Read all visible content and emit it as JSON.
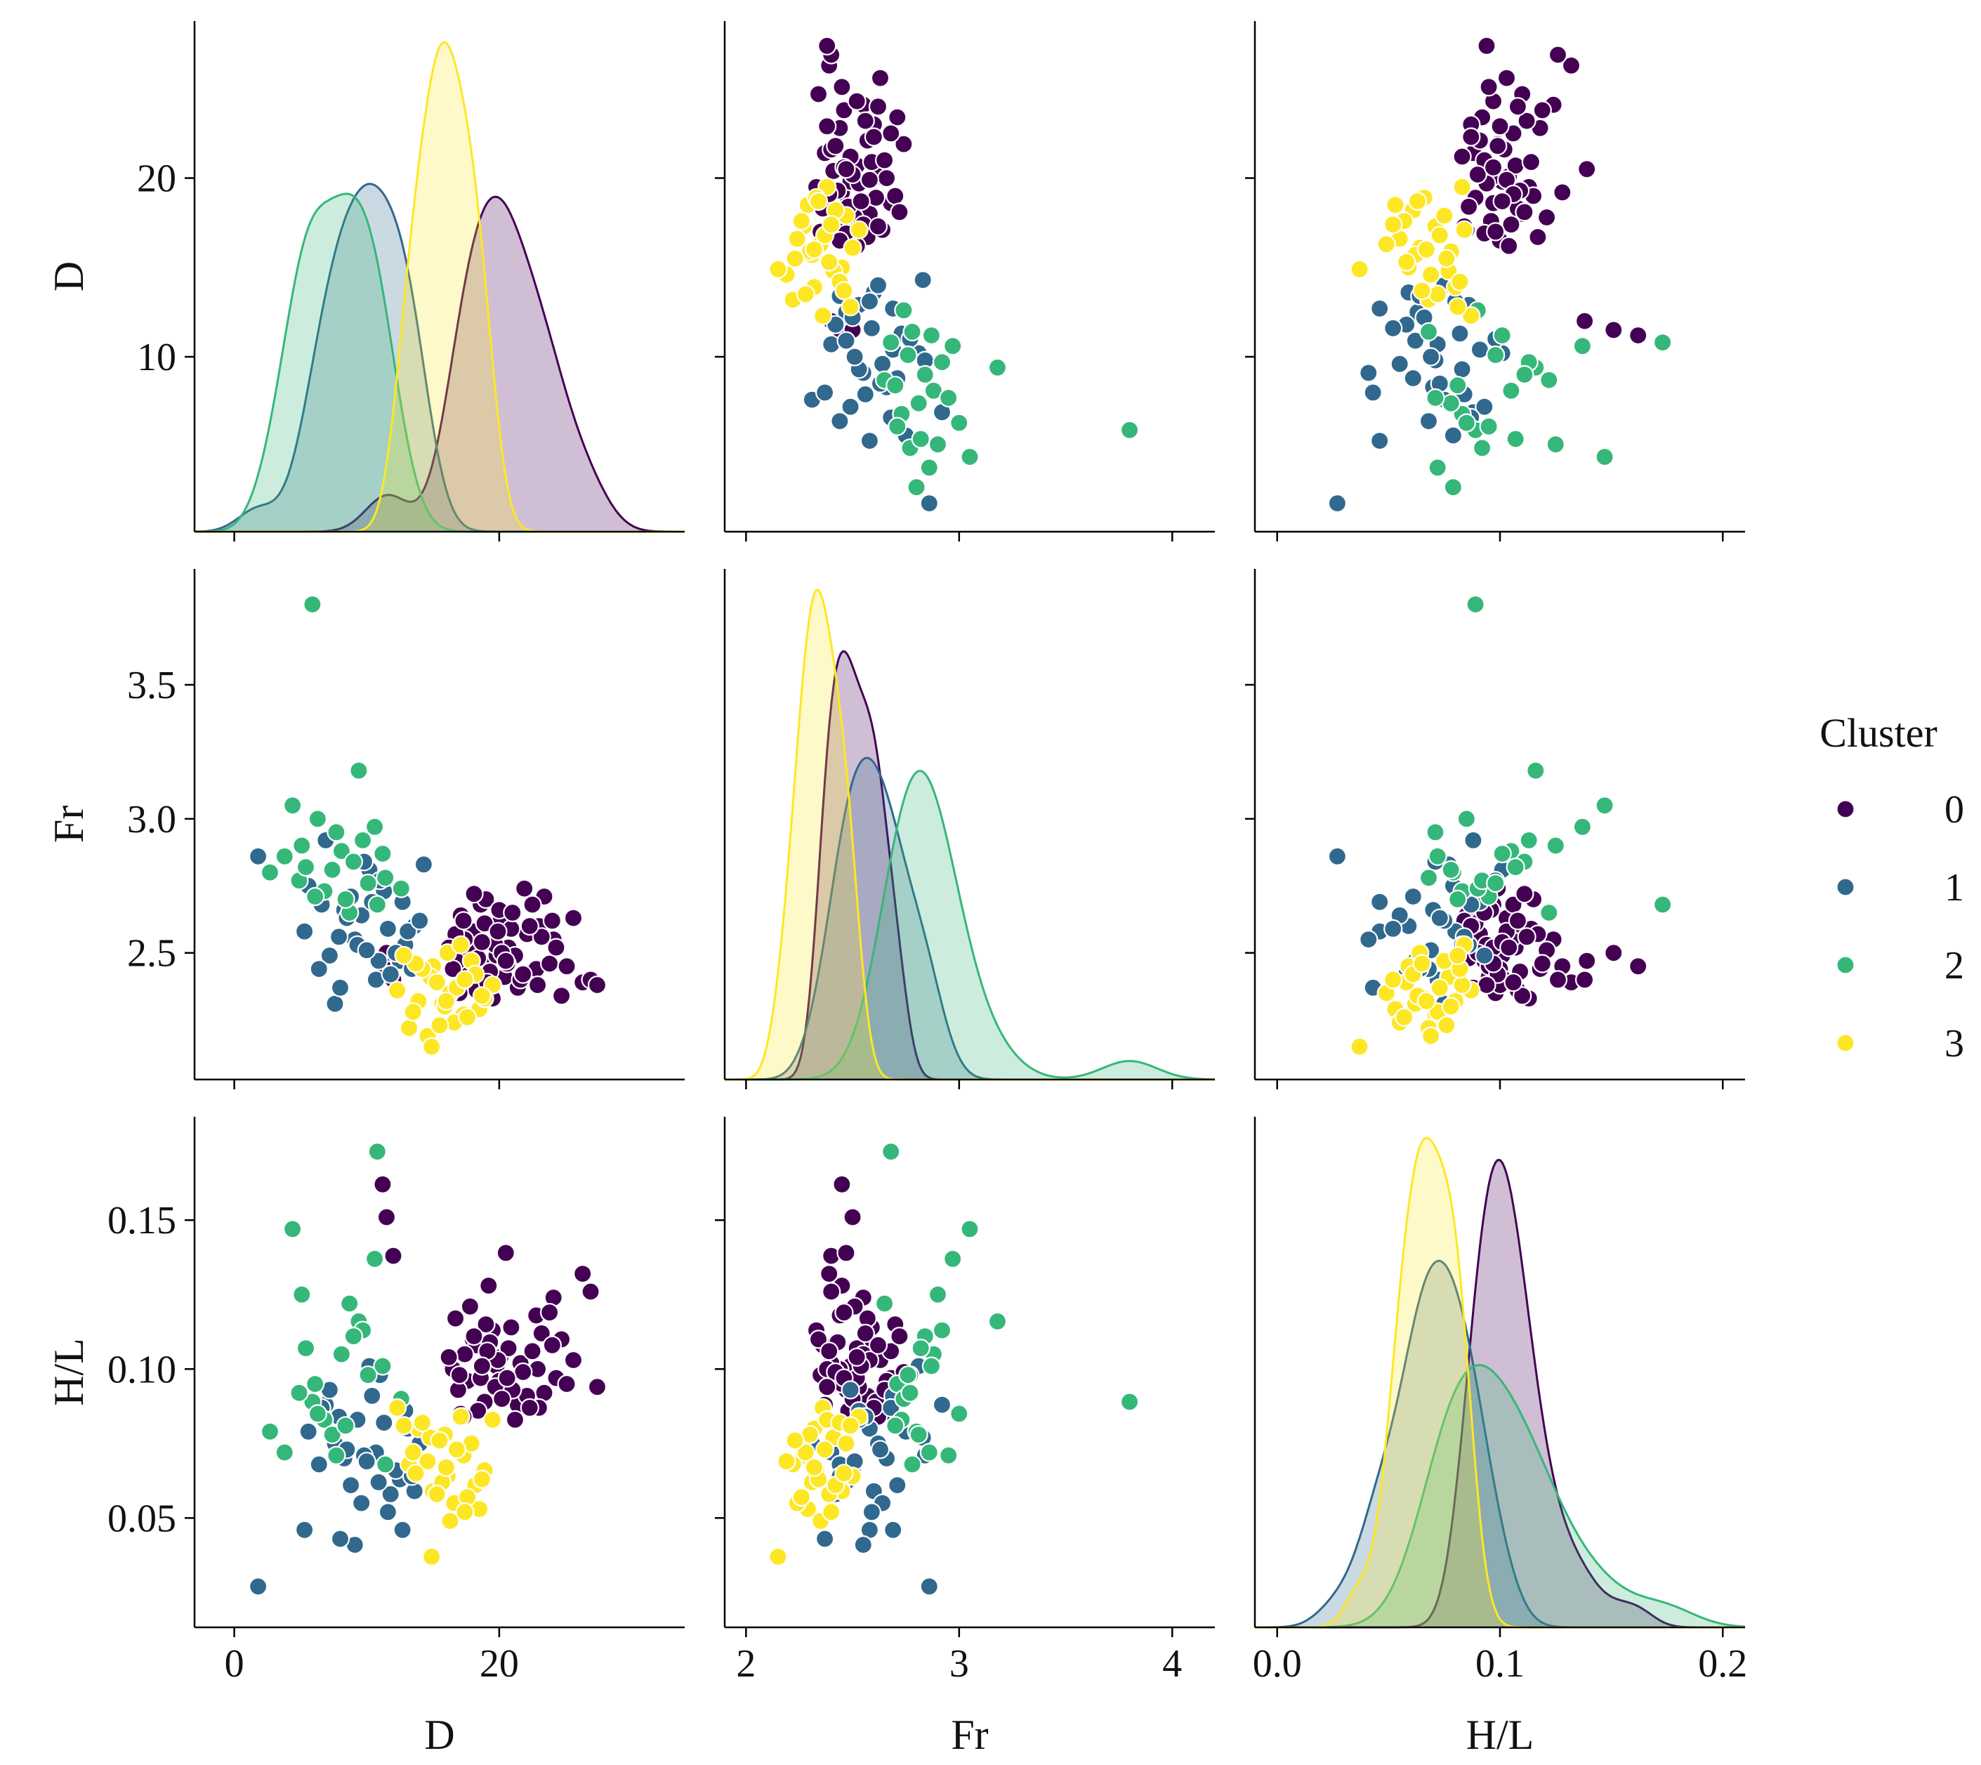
{
  "chart_data": {
    "type": "pairplot",
    "variables": [
      "D",
      "Fr",
      "H/L"
    ],
    "axis_ranges": {
      "D": [
        -3,
        34
      ],
      "Fr": [
        1.9,
        4.2
      ],
      "H/L": [
        -0.01,
        0.21
      ]
    },
    "ticks": {
      "D": {
        "values": [
          0,
          20
        ],
        "labels": [
          "0",
          "20"
        ],
        "row_values": [
          10,
          20
        ],
        "row_labels": [
          "10",
          "20"
        ]
      },
      "Fr": {
        "values": [
          2,
          3,
          4
        ],
        "labels": [
          "2",
          "3",
          "4"
        ],
        "row_values": [
          2.5,
          3.0,
          3.5
        ],
        "row_labels": [
          "2.5",
          "3.0",
          "3.5"
        ]
      },
      "H/L": {
        "values": [
          0.0,
          0.1,
          0.2
        ],
        "labels": [
          "0.0",
          "0.1",
          "0.2"
        ],
        "row_values": [
          0.05,
          0.1,
          0.15
        ],
        "row_labels": [
          "0.05",
          "0.10",
          "0.15"
        ]
      }
    },
    "row_value_range": {
      "D": [
        1,
        28
      ],
      "Fr": [
        2.08,
        3.88
      ],
      "H/L": [
        0.018,
        0.18
      ]
    },
    "legend": {
      "title": "Cluster",
      "position": "right",
      "entries": [
        "0",
        "1",
        "2",
        "3"
      ]
    },
    "colors": [
      "#440154",
      "#31688e",
      "#35b779",
      "#fde725"
    ],
    "grid": false,
    "series": [
      {
        "name": "0",
        "points": [
          [
            19.2,
            2.45,
            0.128
          ],
          [
            20.1,
            2.62,
            0.104
          ],
          [
            17.6,
            2.42,
            0.096
          ],
          [
            23.4,
            2.71,
            0.092
          ],
          [
            18.0,
            2.58,
            0.11
          ],
          [
            21.4,
            2.37,
            0.088
          ],
          [
            24.1,
            2.55,
            0.124
          ],
          [
            19.8,
            2.49,
            0.101
          ],
          [
            17.1,
            2.64,
            0.085
          ],
          [
            22.8,
            2.44,
            0.118
          ],
          [
            26.3,
            2.39,
            0.132
          ],
          [
            18.6,
            2.68,
            0.097
          ],
          [
            20.7,
            2.52,
            0.107
          ],
          [
            16.9,
            2.47,
            0.093
          ],
          [
            21.9,
            2.74,
            0.099
          ],
          [
            19.5,
            2.33,
            0.113
          ],
          [
            23.0,
            2.6,
            0.087
          ],
          [
            17.8,
            2.51,
            0.121
          ],
          [
            20.4,
            2.41,
            0.095
          ],
          [
            25.6,
            2.63,
            0.103
          ],
          [
            18.3,
            2.36,
            0.108
          ],
          [
            22.1,
            2.57,
            0.091
          ],
          [
            19.0,
            2.7,
            0.115
          ],
          [
            16.5,
            2.44,
            0.1
          ],
          [
            21.2,
            2.49,
            0.083
          ],
          [
            24.7,
            2.34,
            0.11
          ],
          [
            20.0,
            2.66,
            0.096
          ],
          [
            17.4,
            2.55,
            0.105
          ],
          [
            23.8,
            2.46,
            0.119
          ],
          [
            18.9,
            2.61,
            0.089
          ],
          [
            21.6,
            2.4,
            0.102
          ],
          [
            19.7,
            2.53,
            0.094
          ],
          [
            26.9,
            2.4,
            0.126
          ],
          [
            22.5,
            2.68,
            0.106
          ],
          [
            17.0,
            2.35,
            0.098
          ],
          [
            20.9,
            2.59,
            0.114
          ],
          [
            18.4,
            2.48,
            0.086
          ],
          [
            24.3,
            2.52,
            0.097
          ],
          [
            19.3,
            2.43,
            0.109
          ],
          [
            21.0,
            2.65,
            0.093
          ],
          [
            16.7,
            2.57,
            0.117
          ],
          [
            22.9,
            2.38,
            0.1
          ],
          [
            20.2,
            2.5,
            0.09
          ],
          [
            18.1,
            2.72,
            0.111
          ],
          [
            25.1,
            2.45,
            0.095
          ],
          [
            19.9,
            2.58,
            0.103
          ],
          [
            21.8,
            2.42,
            0.099
          ],
          [
            17.3,
            2.62,
            0.084
          ],
          [
            23.2,
            2.56,
            0.112
          ],
          [
            20.6,
            2.46,
            0.097
          ],
          [
            19.1,
            2.39,
            0.106
          ],
          [
            27.4,
            2.38,
            0.094
          ],
          [
            18.7,
            2.54,
            0.101
          ],
          [
            22.3,
            2.6,
            0.087
          ],
          [
            11.2,
            2.45,
            0.162
          ],
          [
            11.5,
            2.5,
            0.151
          ],
          [
            12.0,
            2.4,
            0.138
          ],
          [
            20.5,
            2.47,
            0.139
          ],
          [
            24.0,
            2.62,
            0.108
          ],
          [
            16.2,
            2.52,
            0.104
          ]
        ]
      },
      {
        "name": "1",
        "points": [
          [
            1.8,
            2.86,
            0.027
          ],
          [
            7.6,
            2.31,
            0.075
          ],
          [
            5.3,
            2.58,
            0.046
          ],
          [
            10.2,
            2.81,
            0.101
          ],
          [
            8.3,
            2.66,
            0.07
          ],
          [
            12.5,
            2.47,
            0.063
          ],
          [
            6.9,
            2.92,
            0.088
          ],
          [
            9.1,
            2.55,
            0.041
          ],
          [
            11.3,
            2.73,
            0.082
          ],
          [
            13.6,
            2.6,
            0.059
          ],
          [
            7.2,
            2.49,
            0.093
          ],
          [
            14.3,
            2.83,
            0.077
          ],
          [
            10.7,
            2.4,
            0.072
          ],
          [
            8.8,
            2.71,
            0.061
          ],
          [
            12.9,
            2.53,
            0.086
          ],
          [
            9.6,
            2.64,
            0.055
          ],
          [
            11.0,
            2.77,
            0.098
          ],
          [
            6.4,
            2.44,
            0.068
          ],
          [
            13.1,
            2.58,
            0.08
          ],
          [
            8.0,
            2.37,
            0.043
          ],
          [
            10.4,
            2.69,
            0.091
          ],
          [
            12.2,
            2.5,
            0.066
          ],
          [
            9.8,
            2.84,
            0.071
          ],
          [
            7.9,
            2.56,
            0.084
          ],
          [
            11.8,
            2.42,
            0.058
          ],
          [
            14.0,
            2.62,
            0.075
          ],
          [
            5.6,
            2.75,
            0.079
          ],
          [
            10.9,
            2.47,
            0.062
          ],
          [
            12.7,
            2.69,
            0.046
          ],
          [
            9.3,
            2.53,
            0.083
          ],
          [
            8.5,
            2.63,
            0.073
          ],
          [
            13.4,
            2.44,
            0.064
          ],
          [
            11.6,
            2.59,
            0.052
          ],
          [
            6.6,
            2.68,
            0.087
          ],
          [
            10.0,
            2.51,
            0.069
          ]
        ]
      },
      {
        "name": "2",
        "points": [
          [
            5.9,
            3.8,
            0.089
          ],
          [
            2.7,
            2.8,
            0.079
          ],
          [
            4.4,
            3.05,
            0.147
          ],
          [
            9.4,
            3.18,
            0.116
          ],
          [
            3.8,
            2.86,
            0.072
          ],
          [
            5.1,
            2.9,
            0.125
          ],
          [
            6.8,
            2.73,
            0.083
          ],
          [
            10.6,
            2.97,
            0.137
          ],
          [
            8.1,
            2.88,
            0.105
          ],
          [
            6.1,
            2.71,
            0.095
          ],
          [
            11.4,
            2.78,
            0.068
          ],
          [
            9.7,
            2.92,
            0.113
          ],
          [
            7.4,
            2.81,
            0.078
          ],
          [
            10.8,
            2.68,
            0.173
          ],
          [
            12.6,
            2.74,
            0.09
          ],
          [
            6.3,
            3.0,
            0.085
          ],
          [
            8.7,
            2.65,
            0.122
          ],
          [
            11.2,
            2.87,
            0.101
          ],
          [
            4.9,
            2.77,
            0.092
          ],
          [
            7.7,
            2.95,
            0.071
          ],
          [
            9.0,
            2.84,
            0.111
          ],
          [
            10.1,
            2.76,
            0.098
          ],
          [
            8.4,
            2.7,
            0.081
          ],
          [
            5.4,
            2.82,
            0.107
          ]
        ]
      },
      {
        "name": "3",
        "points": [
          [
            13.9,
            2.32,
            0.08
          ],
          [
            15.0,
            2.45,
            0.059
          ],
          [
            17.3,
            2.27,
            0.071
          ],
          [
            12.3,
            2.36,
            0.087
          ],
          [
            16.1,
            2.5,
            0.064
          ],
          [
            18.5,
            2.29,
            0.053
          ],
          [
            14.8,
            2.41,
            0.077
          ],
          [
            13.2,
            2.22,
            0.068
          ],
          [
            19.5,
            2.38,
            0.083
          ],
          [
            15.7,
            2.31,
            0.062
          ],
          [
            17.9,
            2.47,
            0.075
          ],
          [
            16.6,
            2.24,
            0.055
          ],
          [
            14.2,
            2.44,
            0.082
          ],
          [
            18.9,
            2.33,
            0.066
          ],
          [
            15.3,
            2.39,
            0.058
          ],
          [
            13.5,
            2.28,
            0.072
          ],
          [
            17.1,
            2.53,
            0.084
          ],
          [
            16.3,
            2.35,
            0.049
          ],
          [
            14.6,
            2.19,
            0.069
          ],
          [
            18.2,
            2.42,
            0.061
          ],
          [
            15.9,
            2.3,
            0.078
          ],
          [
            13.7,
            2.46,
            0.065
          ],
          [
            17.6,
            2.26,
            0.057
          ],
          [
            16.8,
            2.37,
            0.073
          ],
          [
            14.9,
            2.15,
            0.037
          ],
          [
            12.8,
            2.49,
            0.081
          ],
          [
            18.7,
            2.34,
            0.063
          ],
          [
            15.5,
            2.23,
            0.076
          ],
          [
            17.4,
            2.4,
            0.052
          ],
          [
            16.0,
            2.32,
            0.067
          ]
        ]
      }
    ]
  }
}
